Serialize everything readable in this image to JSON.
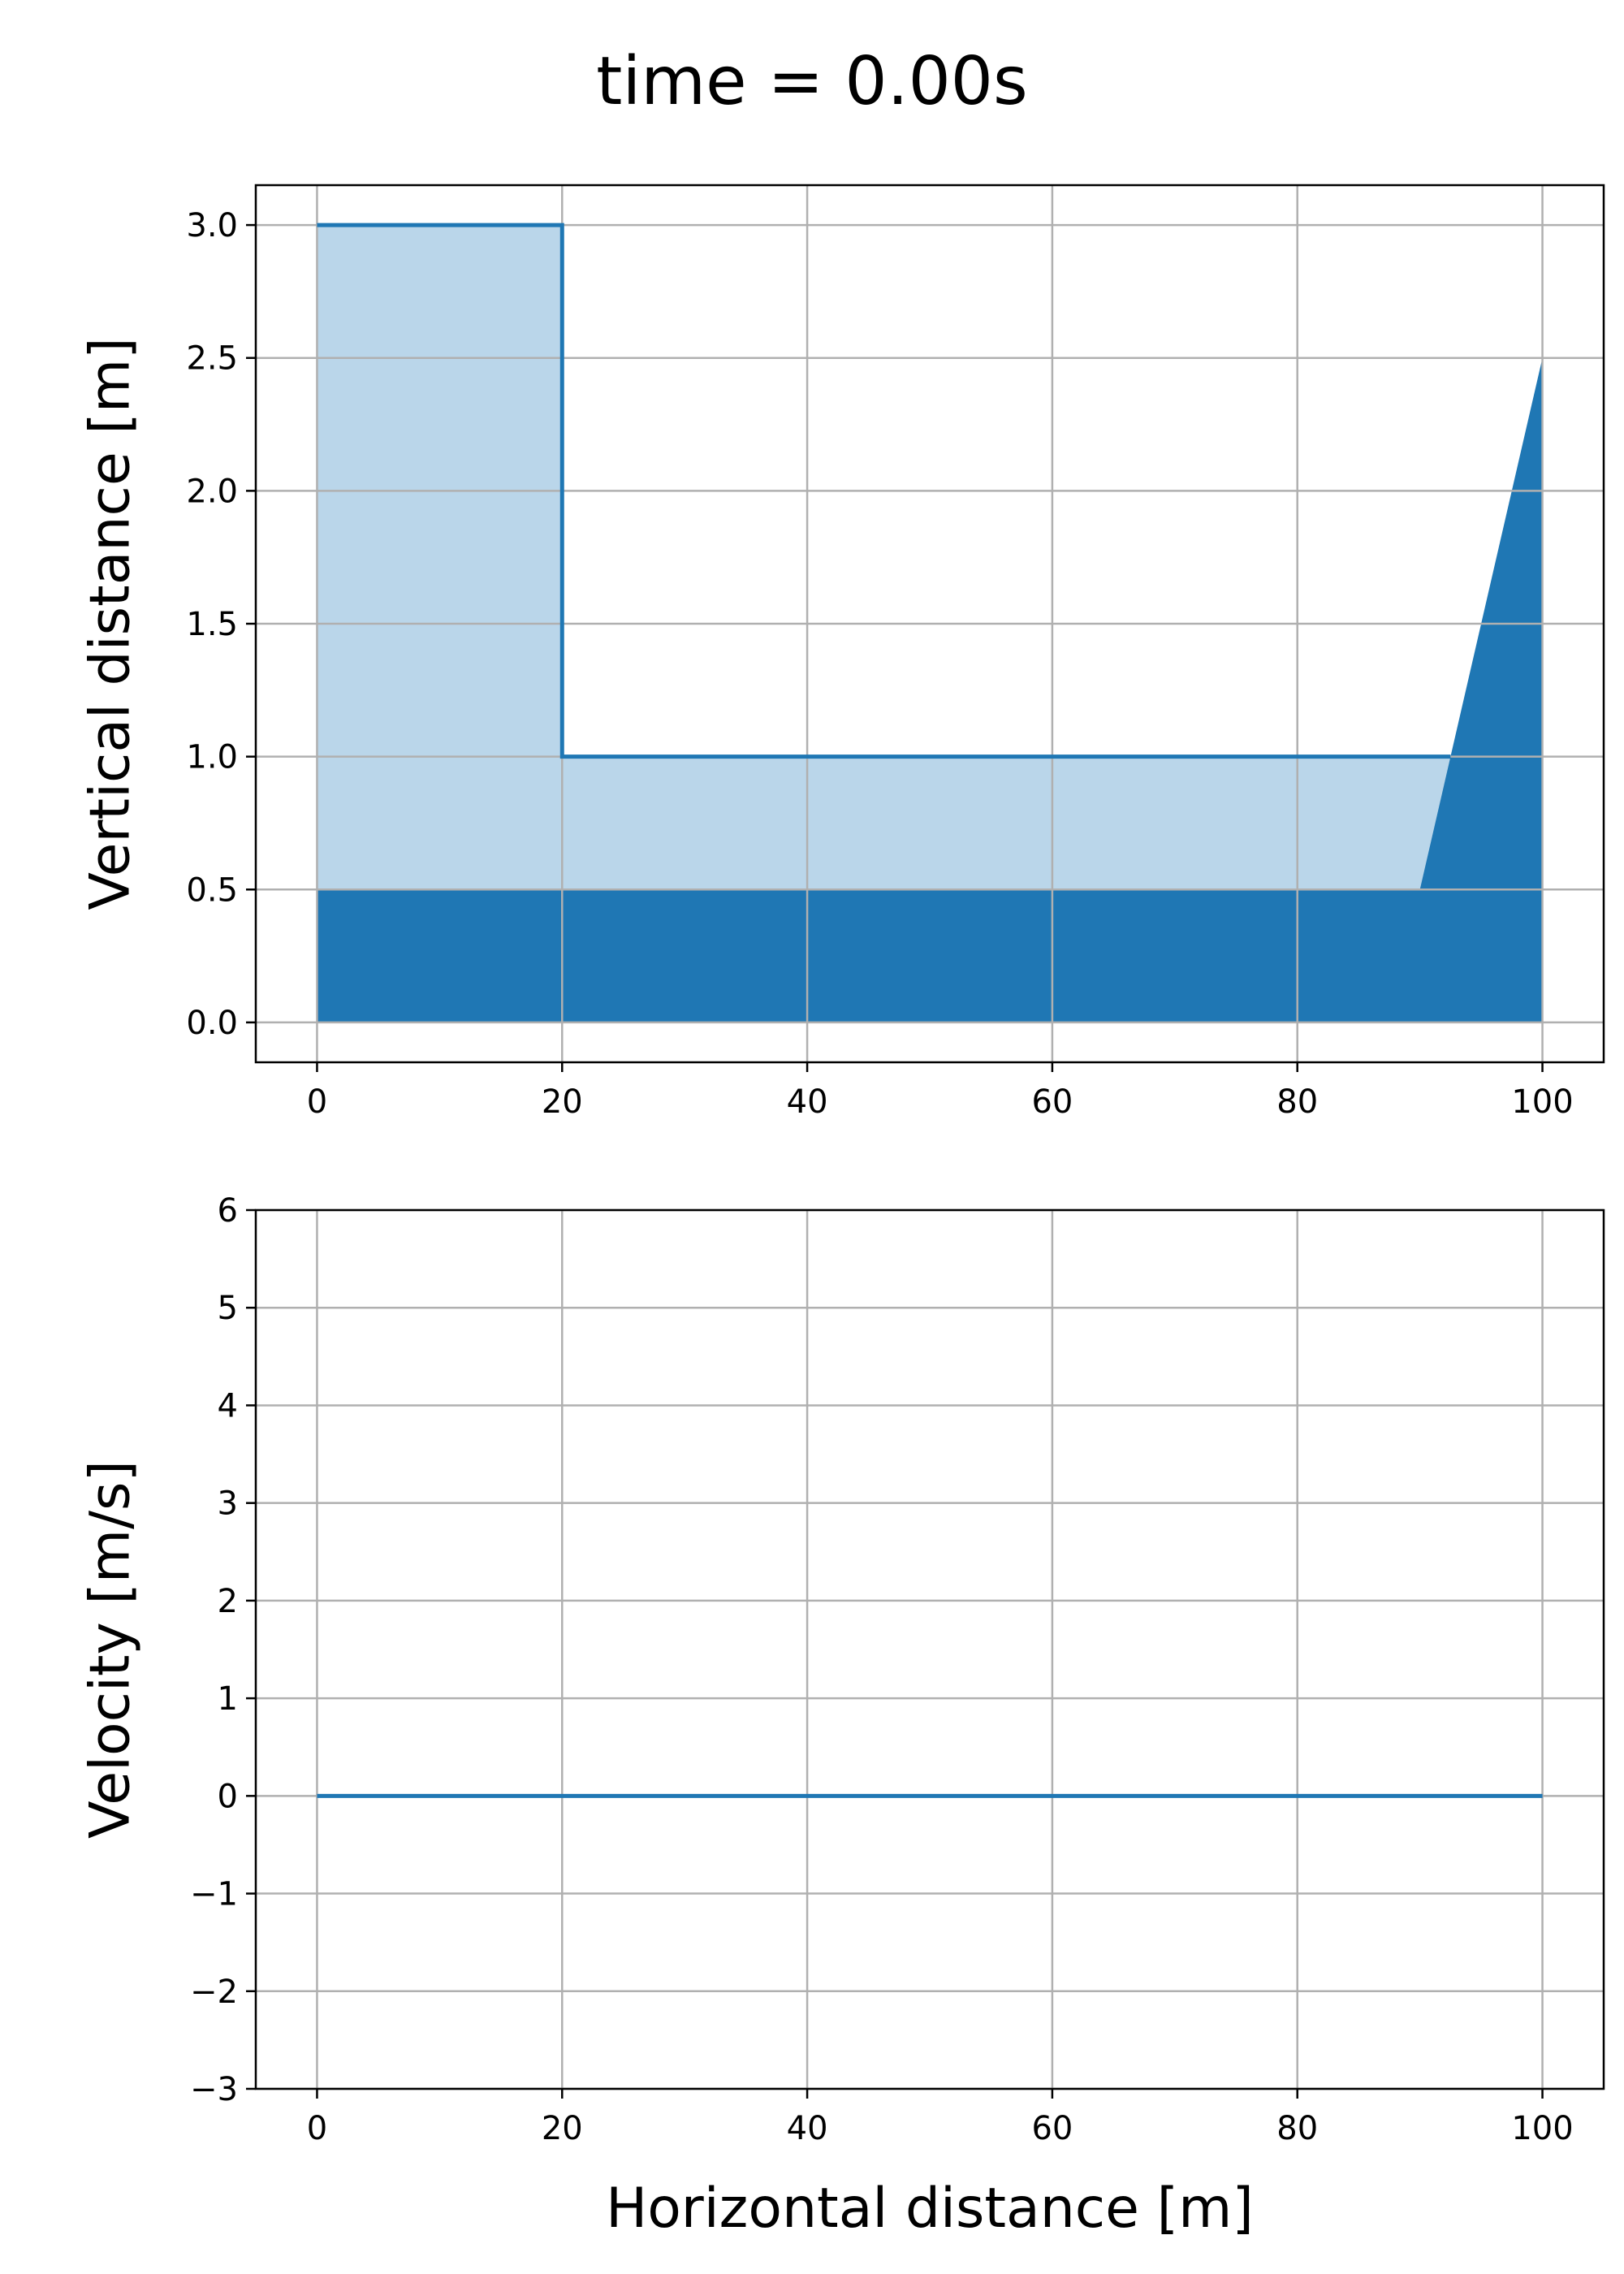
{
  "figure_title": "time = 0.00s",
  "colors": {
    "dark": "#1f77b4",
    "light": "#bad6ea",
    "grid": "#b0b0b0"
  },
  "chart_data": [
    {
      "type": "area",
      "title": "",
      "xlabel": "",
      "ylabel": "Vertical distance [m]",
      "xlim": [
        -5,
        105
      ],
      "ylim": [
        -0.15,
        3.15
      ],
      "xticks": [
        0,
        20,
        40,
        60,
        80,
        100
      ],
      "yticks": [
        0.0,
        0.5,
        1.0,
        1.5,
        2.0,
        2.5,
        3.0
      ],
      "xtick_labels": [
        "0",
        "20",
        "40",
        "60",
        "80",
        "100"
      ],
      "ytick_labels": [
        "0.0",
        "0.5",
        "1.0",
        "1.5",
        "2.0",
        "2.5",
        "3.0"
      ],
      "grid": true,
      "bed": {
        "x": [
          0,
          90,
          100,
          100,
          0
        ],
        "y": [
          0.5,
          0.5,
          2.5,
          0,
          0
        ]
      },
      "water_fill": {
        "x": [
          0,
          0,
          20,
          20,
          92.5,
          90
        ],
        "y": [
          0.5,
          3.0,
          3.0,
          1.0,
          1.0,
          0.5
        ]
      },
      "surface_line": {
        "x": [
          0,
          20,
          20,
          92.5
        ],
        "y": [
          3.0,
          3.0,
          1.0,
          1.0
        ]
      }
    },
    {
      "type": "line",
      "title": "",
      "xlabel": "Horizontal distance [m]",
      "ylabel": "Velocity [m/s]",
      "xlim": [
        -5,
        105
      ],
      "ylim": [
        -3,
        6
      ],
      "xticks": [
        0,
        20,
        40,
        60,
        80,
        100
      ],
      "yticks": [
        -3,
        -2,
        -1,
        0,
        1,
        2,
        3,
        4,
        5,
        6
      ],
      "xtick_labels": [
        "0",
        "20",
        "40",
        "60",
        "80",
        "100"
      ],
      "ytick_labels": [
        "−3",
        "−2",
        "−1",
        "0",
        "1",
        "2",
        "3",
        "4",
        "5",
        "6"
      ],
      "grid": true,
      "series": [
        {
          "x": [
            0,
            100
          ],
          "y": [
            0,
            0
          ]
        }
      ]
    }
  ]
}
